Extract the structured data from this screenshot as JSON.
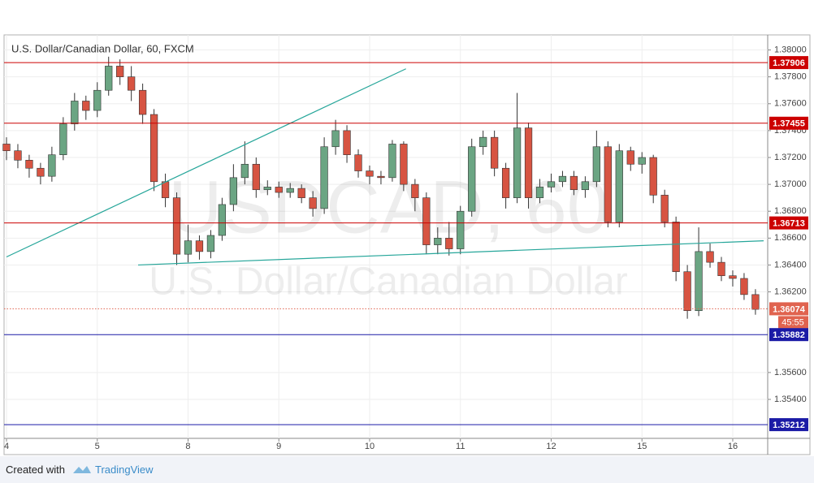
{
  "chart_data": {
    "type": "candlestick",
    "title": "U.S. Dollar/Canadian Dollar, 60, FXCM",
    "watermark": {
      "symbol": "USDCAD, 60",
      "description": "U.S. Dollar/Canadian Dollar"
    },
    "x": [
      0,
      0.125,
      0.25,
      0.375,
      0.5,
      0.625,
      0.75,
      0.875,
      1,
      1.125,
      1.25,
      1.375,
      1.5,
      1.625,
      1.75,
      1.875,
      2,
      2.125,
      2.25,
      2.375,
      2.5,
      2.625,
      2.75,
      2.875,
      3,
      3.125,
      3.25,
      3.375,
      3.5,
      3.625,
      3.75,
      3.875,
      4,
      4.125,
      4.25,
      4.375,
      4.5,
      4.625,
      4.75,
      4.875,
      5,
      5.125,
      5.25,
      5.375,
      5.5,
      5.625,
      5.75,
      5.875,
      6,
      6.125,
      6.25,
      6.375,
      6.5,
      6.625,
      6.75,
      6.875,
      7,
      7.125,
      7.25,
      7.375,
      7.5,
      7.625,
      7.75,
      7.875,
      8,
      8.125,
      8.25
    ],
    "open": [
      1.373,
      1.3725,
      1.3718,
      1.3712,
      1.3706,
      1.3722,
      1.3745,
      1.3762,
      1.3755,
      1.377,
      1.3788,
      1.378,
      1.377,
      1.3752,
      1.3702,
      1.369,
      1.3648,
      1.3658,
      1.365,
      1.3662,
      1.3685,
      1.3705,
      1.3715,
      1.3696,
      1.3698,
      1.3694,
      1.3697,
      1.369,
      1.3682,
      1.3728,
      1.374,
      1.3722,
      1.371,
      1.3706,
      1.3705,
      1.373,
      1.37,
      1.369,
      1.3655,
      1.366,
      1.3652,
      1.368,
      1.3728,
      1.3735,
      1.3712,
      1.369,
      1.3742,
      1.369,
      1.3698,
      1.3702,
      1.3706,
      1.3696,
      1.3702,
      1.3728,
      1.3672,
      1.3725,
      1.3715,
      1.372,
      1.3692,
      1.3672,
      1.3635,
      1.3606,
      1.365,
      1.3642,
      1.3632,
      1.363,
      1.3618
    ],
    "high": [
      1.3735,
      1.373,
      1.3722,
      1.3716,
      1.3728,
      1.375,
      1.3768,
      1.3766,
      1.3776,
      1.3795,
      1.3793,
      1.3788,
      1.3775,
      1.3756,
      1.3708,
      1.3694,
      1.367,
      1.3662,
      1.3666,
      1.369,
      1.3715,
      1.3732,
      1.372,
      1.3703,
      1.3702,
      1.3701,
      1.37,
      1.3695,
      1.3735,
      1.3748,
      1.3744,
      1.3726,
      1.3714,
      1.371,
      1.3733,
      1.3732,
      1.3704,
      1.3694,
      1.3668,
      1.3672,
      1.3684,
      1.3734,
      1.374,
      1.374,
      1.3716,
      1.3768,
      1.3746,
      1.3704,
      1.3708,
      1.371,
      1.371,
      1.3706,
      1.374,
      1.3732,
      1.373,
      1.3728,
      1.3724,
      1.3722,
      1.3696,
      1.3676,
      1.364,
      1.3668,
      1.3656,
      1.3646,
      1.3636,
      1.3634,
      1.3622
    ],
    "low": [
      1.3718,
      1.3712,
      1.3705,
      1.37,
      1.3702,
      1.3718,
      1.374,
      1.3748,
      1.375,
      1.3766,
      1.3774,
      1.3762,
      1.3745,
      1.3695,
      1.3683,
      1.364,
      1.3642,
      1.3644,
      1.3645,
      1.3658,
      1.368,
      1.37,
      1.369,
      1.3692,
      1.369,
      1.369,
      1.3686,
      1.3676,
      1.3678,
      1.3722,
      1.3716,
      1.3705,
      1.37,
      1.37,
      1.3702,
      1.3695,
      1.368,
      1.3648,
      1.3648,
      1.3647,
      1.3648,
      1.3676,
      1.3722,
      1.3706,
      1.3682,
      1.3686,
      1.3682,
      1.3686,
      1.3694,
      1.3698,
      1.3692,
      1.369,
      1.3698,
      1.3668,
      1.3668,
      1.371,
      1.3708,
      1.3686,
      1.3668,
      1.3628,
      1.36,
      1.3602,
      1.3638,
      1.3628,
      1.3624,
      1.3614,
      1.3603
    ],
    "close": [
      1.3725,
      1.3718,
      1.3712,
      1.3706,
      1.3722,
      1.3745,
      1.3762,
      1.3755,
      1.377,
      1.3788,
      1.378,
      1.377,
      1.3752,
      1.3702,
      1.369,
      1.3648,
      1.3658,
      1.365,
      1.3662,
      1.3685,
      1.3705,
      1.3715,
      1.3696,
      1.3698,
      1.3694,
      1.3697,
      1.369,
      1.3682,
      1.3728,
      1.374,
      1.3722,
      1.371,
      1.3706,
      1.3705,
      1.373,
      1.37,
      1.369,
      1.3655,
      1.366,
      1.3652,
      1.368,
      1.3728,
      1.3735,
      1.3712,
      1.369,
      1.3742,
      1.369,
      1.3698,
      1.3702,
      1.3706,
      1.3696,
      1.3702,
      1.3728,
      1.3672,
      1.3725,
      1.3715,
      1.372,
      1.3692,
      1.3672,
      1.3635,
      1.3606,
      1.365,
      1.3642,
      1.3632,
      1.363,
      1.3618,
      1.3607
    ],
    "up_color": "#6ba583",
    "down_color": "#d75442",
    "xlim": [
      0,
      8.385
    ],
    "xticks": [
      {
        "value": 0,
        "label": "4"
      },
      {
        "value": 1,
        "label": "5"
      },
      {
        "value": 2,
        "label": "8"
      },
      {
        "value": 3,
        "label": "9"
      },
      {
        "value": 4,
        "label": "10"
      },
      {
        "value": 5,
        "label": "11"
      },
      {
        "value": 6,
        "label": "12"
      },
      {
        "value": 7,
        "label": "15"
      },
      {
        "value": 8,
        "label": "16"
      }
    ],
    "ylim": [
      1.3511,
      1.381
    ],
    "yticks": [
      {
        "value": 1.38,
        "label": "1.38000"
      },
      {
        "value": 1.378,
        "label": "1.37800"
      },
      {
        "value": 1.376,
        "label": "1.37600"
      },
      {
        "value": 1.374,
        "label": "1.37400"
      },
      {
        "value": 1.372,
        "label": "1.37200"
      },
      {
        "value": 1.37,
        "label": "1.37000"
      },
      {
        "value": 1.368,
        "label": "1.36800"
      },
      {
        "value": 1.366,
        "label": "1.36600"
      },
      {
        "value": 1.364,
        "label": "1.36400"
      },
      {
        "value": 1.362,
        "label": "1.36200"
      },
      {
        "value": 1.356,
        "label": "1.35600"
      },
      {
        "value": 1.354,
        "label": "1.35400"
      }
    ],
    "grid": true,
    "levels": [
      {
        "value": 1.37906,
        "color": "#cc0000",
        "style": "solid"
      },
      {
        "value": 1.37455,
        "color": "#cc0000",
        "style": "solid"
      },
      {
        "value": 1.36713,
        "color": "#cc0000",
        "style": "solid"
      },
      {
        "value": 1.36074,
        "color": "#e0634f",
        "style": "dotted",
        "countdown": "45:55"
      },
      {
        "value": 1.35882,
        "color": "#1a1aa6",
        "style": "solid"
      },
      {
        "value": 1.35212,
        "color": "#1a1aa6",
        "style": "solid"
      }
    ],
    "trendlines": [
      {
        "x": [
          0,
          4.4
        ],
        "y": [
          1.3646,
          1.3786
        ],
        "color": "#26a69a"
      },
      {
        "x": [
          1.45,
          8.34
        ],
        "y": [
          1.364,
          1.3658
        ],
        "color": "#26a69a"
      }
    ]
  },
  "footer": {
    "text": "Created with",
    "brand": "TradingView"
  }
}
